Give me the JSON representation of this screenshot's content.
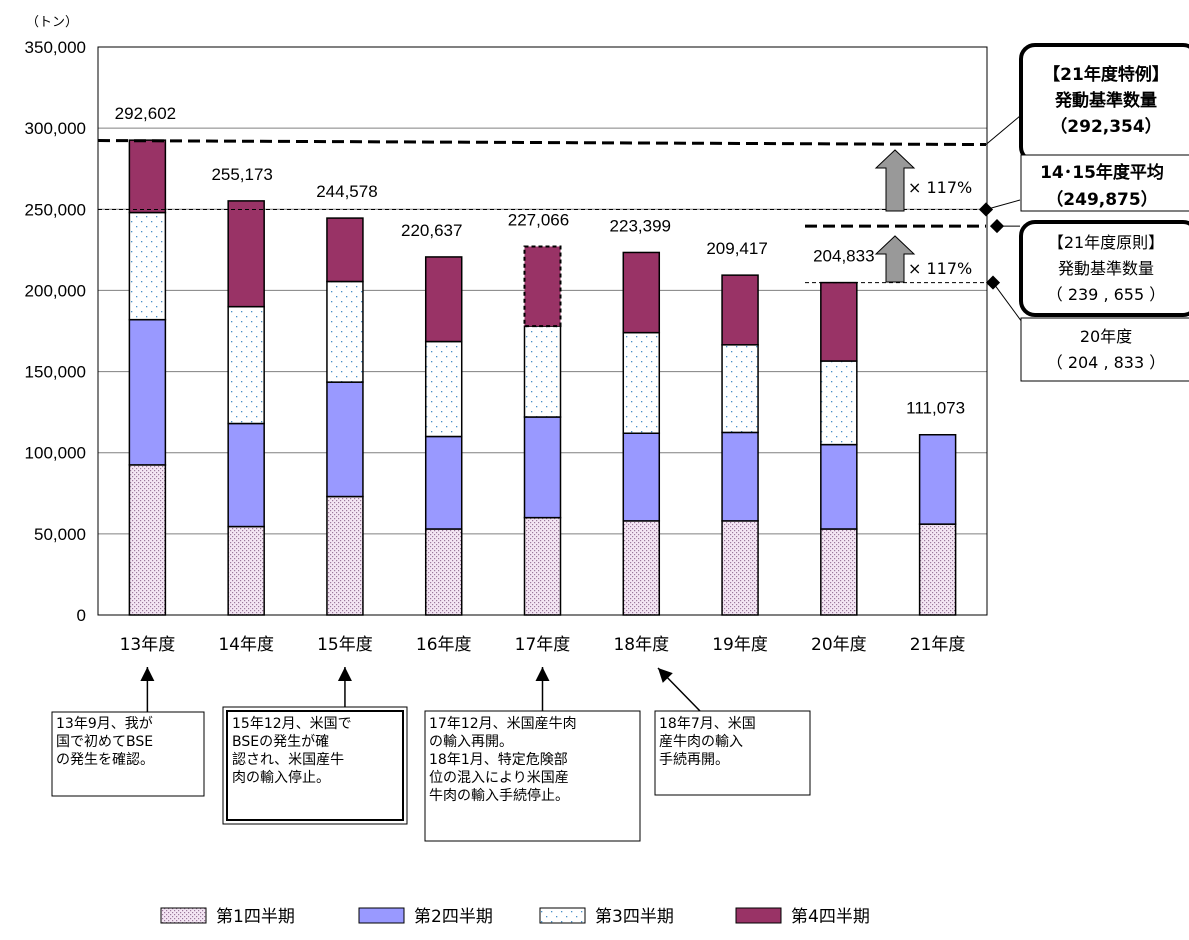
{
  "chart_data": {
    "type": "bar",
    "stacked": true,
    "unit_label": "（トン）",
    "categories": [
      "13年度",
      "14年度",
      "15年度",
      "16年度",
      "17年度",
      "18年度",
      "19年度",
      "20年度",
      "21年度"
    ],
    "ylim": [
      0,
      350000
    ],
    "yticks": [
      "0",
      "50,000",
      "100,000",
      "150,000",
      "200,000",
      "250,000",
      "300,000",
      "350,000"
    ],
    "grid": true,
    "series": [
      {
        "name": "第1四半期",
        "values": [
          92500,
          54500,
          73000,
          53000,
          60000,
          58000,
          58000,
          53000,
          56000
        ]
      },
      {
        "name": "第2四半期",
        "values": [
          89500,
          63500,
          70500,
          57000,
          62000,
          54000,
          54500,
          52000,
          55073
        ]
      },
      {
        "name": "第3四半期",
        "values": [
          66000,
          72000,
          62000,
          58500,
          56000,
          62000,
          54000,
          51500,
          0
        ]
      },
      {
        "name": "第4四半期",
        "values": [
          44602,
          65173,
          39078,
          52137,
          49066,
          49399,
          42917,
          48333,
          0
        ]
      }
    ],
    "totals": [
      "292,602",
      "255,173",
      "244,578",
      "220,637",
      "227,066",
      "223,399",
      "209,417",
      "204,833",
      "111,073"
    ],
    "reference_lines": [
      {
        "value": 292354,
        "label_lines": [
          "【21年度特例】",
          "発動基準数量",
          "（292,354）"
        ]
      },
      {
        "value": 249875,
        "label_lines": [
          "14･15年度平均",
          "（249,875）"
        ]
      },
      {
        "value": 239655,
        "label_lines": [
          "【21年度原則】",
          "発動基準数量",
          "（ 239 , 655 ）"
        ]
      },
      {
        "value": 204833,
        "label_lines": [
          "20年度",
          "（ 204 , 833 ）"
        ]
      }
    ],
    "multiplier_label": "× 117%",
    "annotations": [
      {
        "category_index": 0,
        "lines": [
          "13年9月、我が",
          "国で初めてBSE",
          "の発生を確認。"
        ]
      },
      {
        "category_index": 2,
        "lines": [
          "15年12月、米国で",
          "BSEの発生が確",
          "認され、米国産牛",
          "肉の輸入停止。"
        ]
      },
      {
        "category_index": 4,
        "lines": [
          "17年12月、米国産牛肉",
          "の輸入再開。",
          "18年1月、特定危険部",
          "位の混入により米国産",
          "牛肉の輸入手続停止。"
        ]
      },
      {
        "category_index": 5,
        "lines": [
          "18年7月、米国",
          "産牛肉の輸入",
          "手続再開。"
        ]
      }
    ],
    "colors": {
      "q1": "#f4e6f4",
      "q1_dot": "#9c7a9c",
      "q2": "#9999ff",
      "q3": "#ffffff",
      "q3_dot": "#4a90c8",
      "q4": "#993366",
      "grid": "#808080"
    },
    "legend_placement": "bottom"
  }
}
